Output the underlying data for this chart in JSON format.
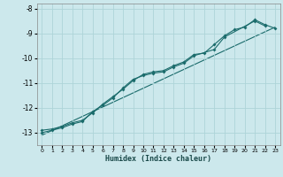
{
  "xlabel": "Humidex (Indice chaleur)",
  "ylabel": "",
  "bg_color": "#cce8ec",
  "grid_color": "#aed4d8",
  "line_color": "#1a6b6b",
  "xlim": [
    -0.5,
    23.5
  ],
  "ylim": [
    -13.5,
    -7.8
  ],
  "yticks": [
    -13,
    -12,
    -11,
    -10,
    -9,
    -8
  ],
  "xticks": [
    0,
    1,
    2,
    3,
    4,
    5,
    6,
    7,
    8,
    9,
    10,
    11,
    12,
    13,
    14,
    15,
    16,
    17,
    18,
    19,
    20,
    21,
    22,
    23
  ],
  "line1_x": [
    0,
    1,
    2,
    3,
    4,
    5,
    6,
    7,
    8,
    9,
    10,
    11,
    12,
    13,
    14,
    15,
    16,
    17,
    18,
    19,
    20,
    21,
    22,
    23
  ],
  "line1_y": [
    -12.9,
    -12.85,
    -12.75,
    -12.6,
    -12.5,
    -12.2,
    -11.85,
    -11.55,
    -11.25,
    -10.9,
    -10.65,
    -10.55,
    -10.5,
    -10.3,
    -10.15,
    -9.85,
    -9.8,
    -9.45,
    -9.1,
    -8.85,
    -8.75,
    -8.45,
    -8.65,
    -8.8
  ],
  "line2_x": [
    0,
    1,
    2,
    3,
    4,
    5,
    6,
    7,
    8,
    9,
    10,
    11,
    12,
    13,
    14,
    15,
    17,
    18,
    21,
    22
  ],
  "line2_y": [
    -13.0,
    -12.9,
    -12.8,
    -12.65,
    -12.55,
    -12.15,
    -11.9,
    -11.6,
    -11.2,
    -10.85,
    -10.7,
    -10.6,
    -10.55,
    -10.35,
    -10.2,
    -9.9,
    -9.65,
    -9.15,
    -8.5,
    -8.7
  ],
  "trend_x": [
    0,
    23
  ],
  "trend_y": [
    -13.1,
    -8.75
  ]
}
